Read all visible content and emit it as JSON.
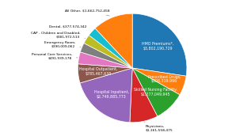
{
  "chart_data": {
    "type": "pie",
    "categories": [
      "HMO Premiums*,\n$3,802,190,729",
      "Prescribed Drugs,\n$806,319,996",
      "Skilled Nursing Facility,\n$1,277,049,945",
      "Physicians,\n$1,161,558,475",
      "Hospital Inpatient,\n$2,749,885,773",
      "Hospital Outpatient,\n$785,467,638",
      "Personal Care Services,\n$491,939,178",
      "Emergency Room,\n$390,009,062",
      "CAP - Children and Disabled,\n$381,972,513",
      "Dental, $377,574,342",
      "All Other, $1,662,752,458"
    ],
    "values": [
      3802190729,
      806319996,
      1277049945,
      1161558475,
      2749885773,
      785467638,
      491939178,
      390009062,
      381972513,
      377574342,
      1662752458
    ]
  }
}
